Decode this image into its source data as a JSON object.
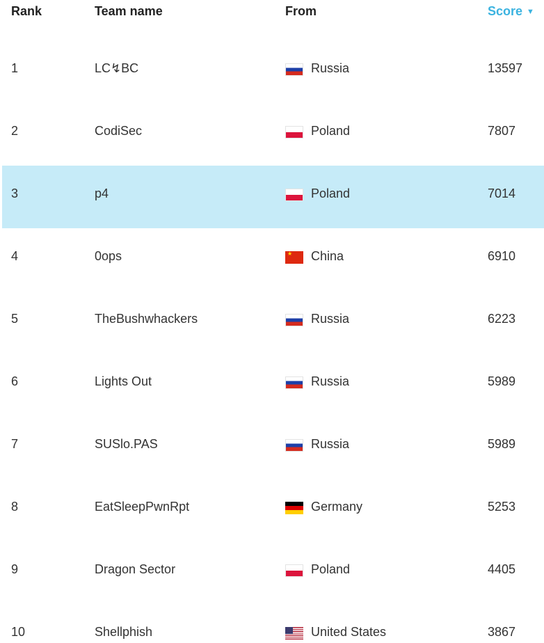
{
  "header": {
    "rank": "Rank",
    "team_name": "Team name",
    "from": "From",
    "score": "Score",
    "sort_arrow": "▼"
  },
  "rows": [
    {
      "rank": "1",
      "team": "LC↯BC",
      "country": "Russia",
      "flag": "flag-russia",
      "score": "13597"
    },
    {
      "rank": "2",
      "team": "CodiSec",
      "country": "Poland",
      "flag": "flag-poland",
      "score": "7807"
    },
    {
      "rank": "3",
      "team": "p4",
      "country": "Poland",
      "flag": "flag-poland",
      "score": "7014",
      "highlighted": true
    },
    {
      "rank": "4",
      "team": "0ops",
      "country": "China",
      "flag": "flag-china",
      "score": "6910"
    },
    {
      "rank": "5",
      "team": "TheBushwhackers",
      "country": "Russia",
      "flag": "flag-russia",
      "score": "6223"
    },
    {
      "rank": "6",
      "team": "Lights Out",
      "country": "Russia",
      "flag": "flag-russia",
      "score": "5989"
    },
    {
      "rank": "7",
      "team": "SUSlo.PAS",
      "country": "Russia",
      "flag": "flag-russia",
      "score": "5989"
    },
    {
      "rank": "8",
      "team": "EatSleepPwnRpt",
      "country": "Germany",
      "flag": "flag-germany",
      "score": "5253"
    },
    {
      "rank": "9",
      "team": "Dragon Sector",
      "country": "Poland",
      "flag": "flag-poland",
      "score": "4405"
    },
    {
      "rank": "10",
      "team": "Shellphish",
      "country": "United States",
      "flag": "flag-usa",
      "score": "3867"
    }
  ],
  "colors": {
    "accent": "#3bb3e0",
    "highlight": "#c6ebf8"
  }
}
